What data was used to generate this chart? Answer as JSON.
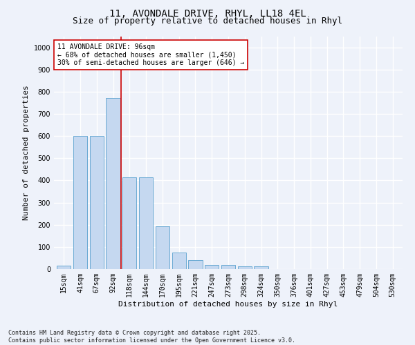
{
  "title1": "11, AVONDALE DRIVE, RHYL, LL18 4EL",
  "title2": "Size of property relative to detached houses in Rhyl",
  "xlabel": "Distribution of detached houses by size in Rhyl",
  "ylabel": "Number of detached properties",
  "categories": [
    "15sqm",
    "41sqm",
    "67sqm",
    "92sqm",
    "118sqm",
    "144sqm",
    "170sqm",
    "195sqm",
    "221sqm",
    "247sqm",
    "273sqm",
    "298sqm",
    "324sqm",
    "350sqm",
    "376sqm",
    "401sqm",
    "427sqm",
    "453sqm",
    "479sqm",
    "504sqm",
    "530sqm"
  ],
  "values": [
    15,
    600,
    600,
    770,
    415,
    415,
    192,
    75,
    40,
    18,
    18,
    12,
    12,
    0,
    0,
    0,
    0,
    0,
    0,
    0,
    0
  ],
  "bar_color": "#c5d8f0",
  "bar_edge_color": "#6aaad4",
  "vline_x": 3.5,
  "vline_color": "#cc0000",
  "annotation_text": "11 AVONDALE DRIVE: 96sqm\n← 68% of detached houses are smaller (1,450)\n30% of semi-detached houses are larger (646) →",
  "annotation_box_color": "#ffffff",
  "annotation_box_edge": "#cc0000",
  "footer": "Contains HM Land Registry data © Crown copyright and database right 2025.\nContains public sector information licensed under the Open Government Licence v3.0.",
  "ylim": [
    0,
    1050
  ],
  "yticks": [
    0,
    100,
    200,
    300,
    400,
    500,
    600,
    700,
    800,
    900,
    1000
  ],
  "background_color": "#eef2fa",
  "grid_color": "#ffffff",
  "title_fontsize": 10,
  "subtitle_fontsize": 9,
  "ylabel_fontsize": 8,
  "xlabel_fontsize": 8,
  "tick_fontsize": 7,
  "footer_fontsize": 6,
  "annotation_fontsize": 7
}
